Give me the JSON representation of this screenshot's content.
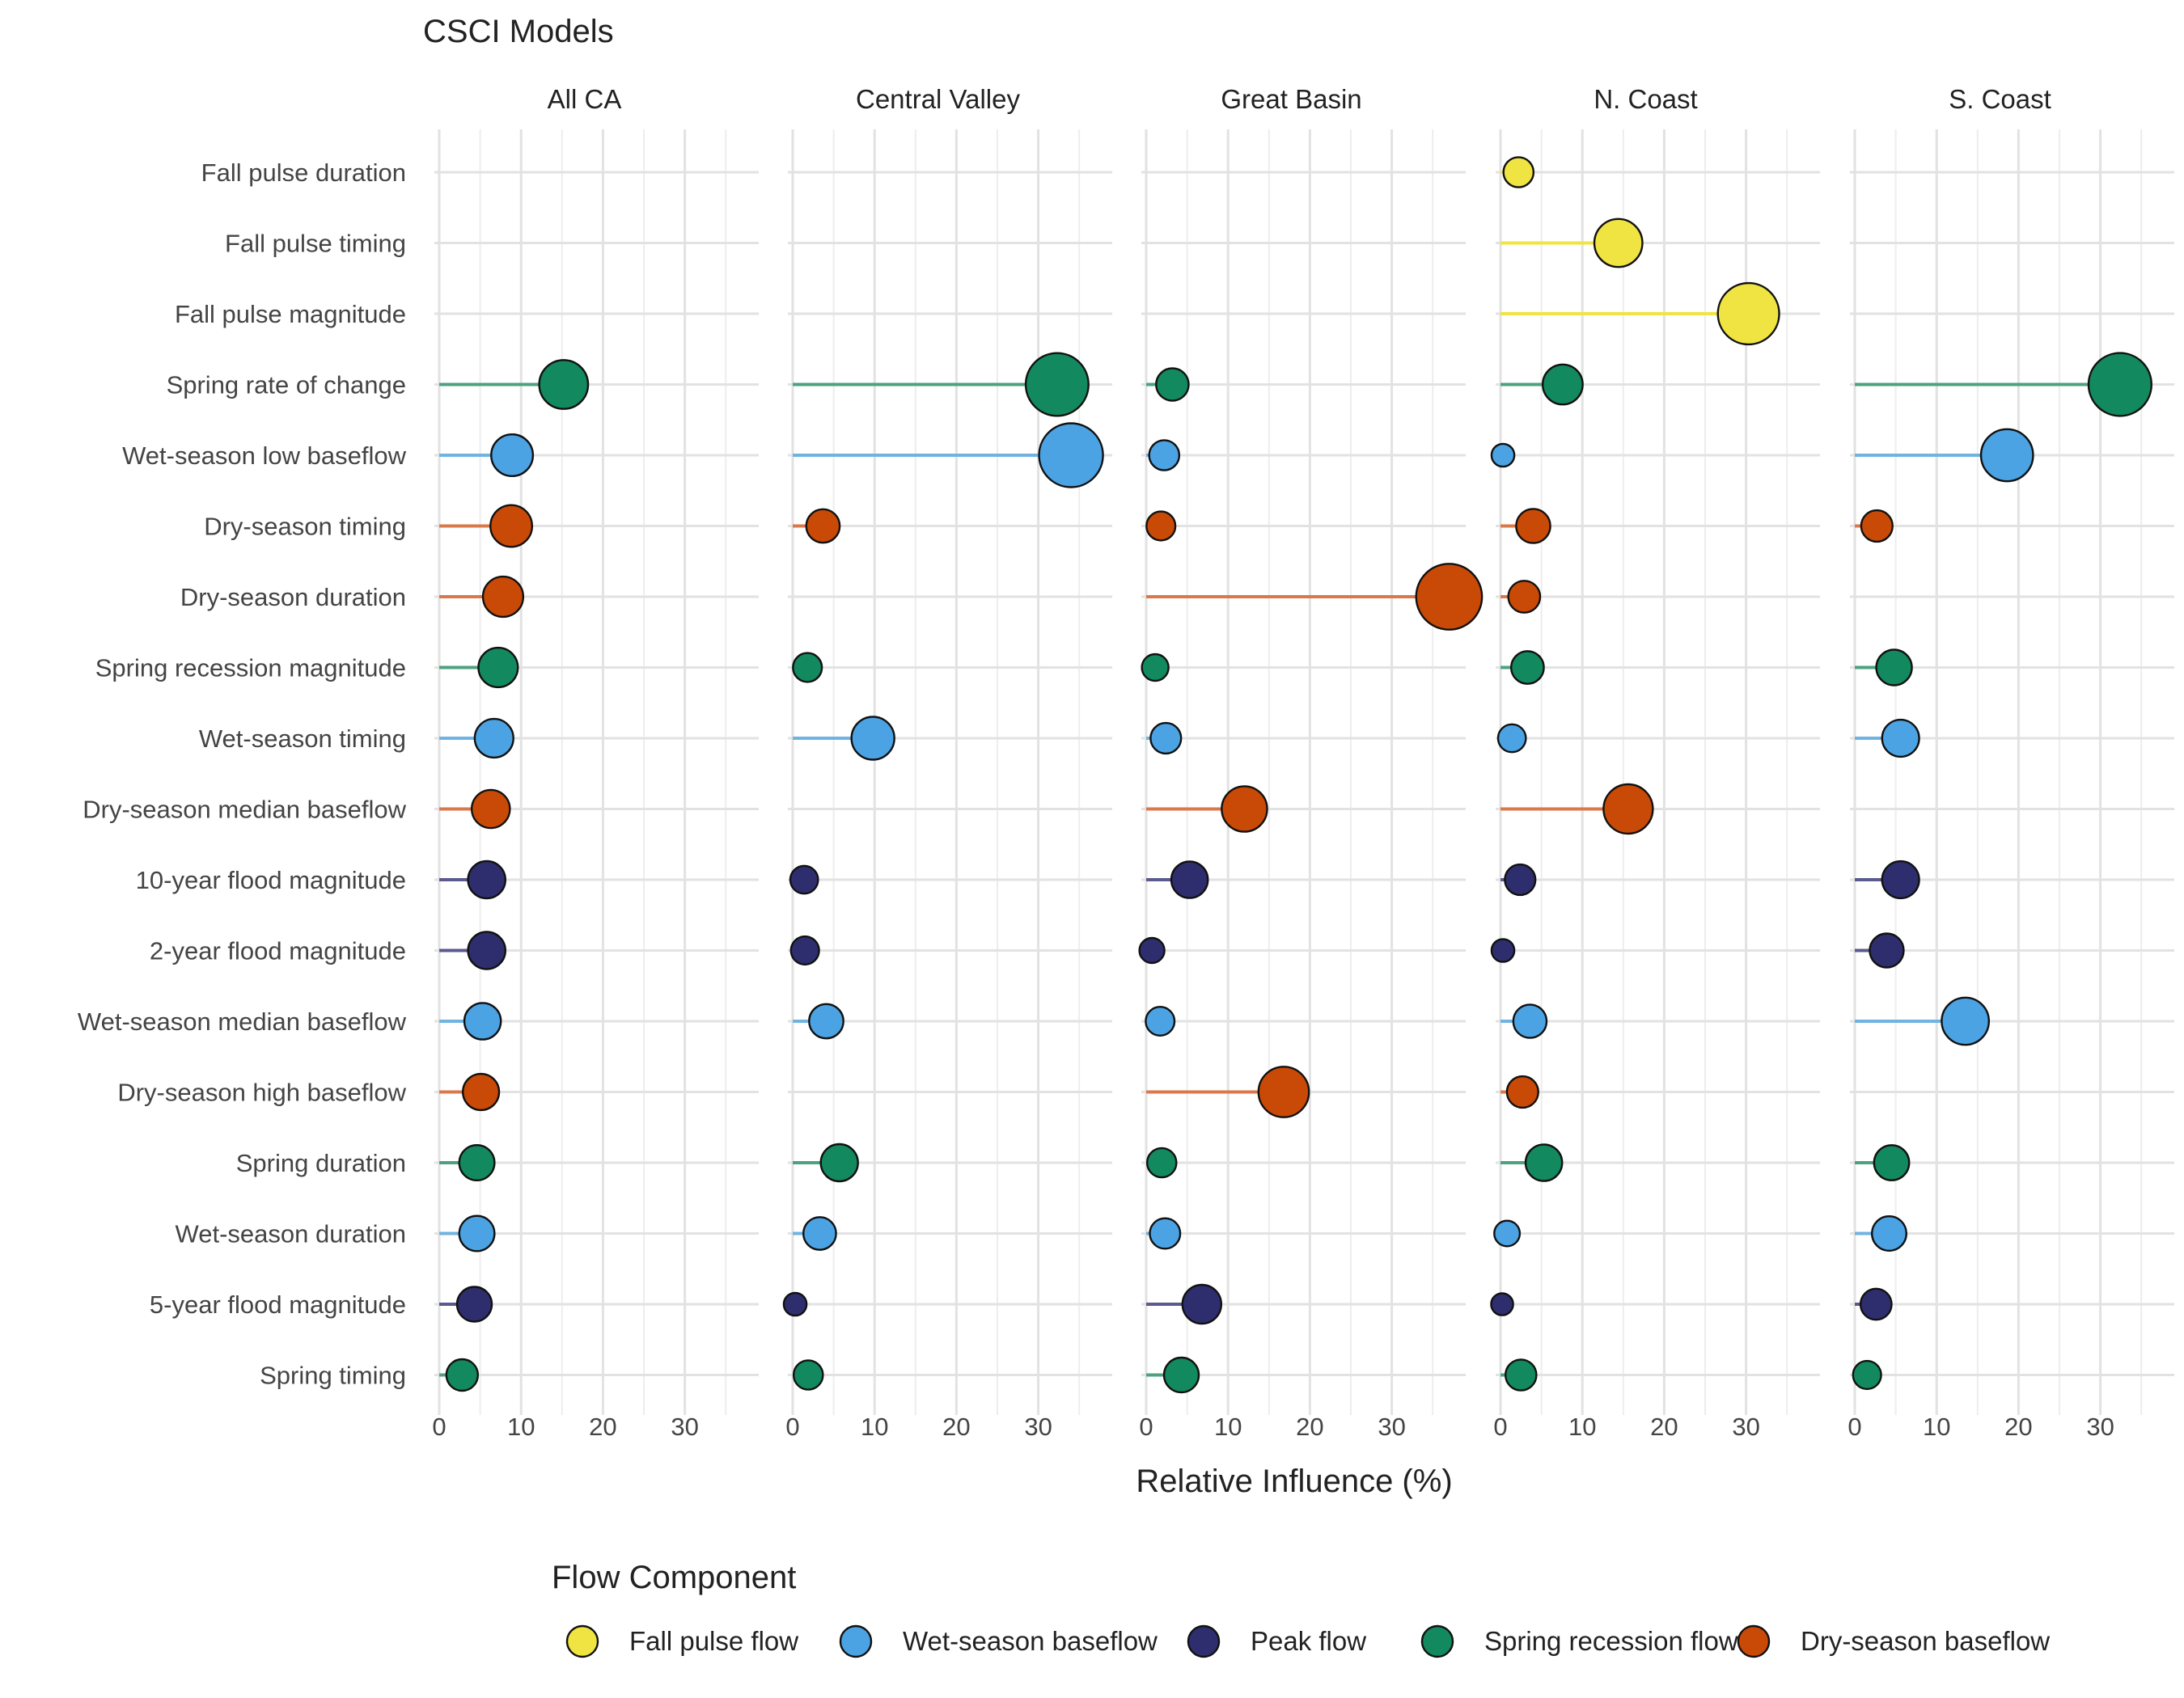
{
  "chart_data": {
    "type": "lollipop",
    "title": "CSCI Models",
    "xlabel": "Relative Influence (%)",
    "xlim": [
      0,
      37
    ],
    "xticks": [
      0,
      10,
      20,
      30
    ],
    "grid": true,
    "legend_title": "Flow Component",
    "legend_position": "bottom",
    "components": [
      {
        "name": "Fall pulse flow",
        "color": "#F0E442",
        "line_color": "#F0E442"
      },
      {
        "name": "Wet-season baseflow",
        "color": "#4BA3E3",
        "line_color": "#6FB3E0"
      },
      {
        "name": "Peak flow",
        "color": "#2E2E6E",
        "line_color": "#5A5A8E"
      },
      {
        "name": "Spring recession flow",
        "color": "#12895E",
        "line_color": "#4EA17F"
      },
      {
        "name": "Dry-season baseflow",
        "color": "#C94A06",
        "line_color": "#D9784A"
      }
    ],
    "metrics": [
      {
        "label": "Fall pulse duration",
        "component": 0
      },
      {
        "label": "Fall pulse timing",
        "component": 0
      },
      {
        "label": "Fall pulse magnitude",
        "component": 0
      },
      {
        "label": "Spring rate of change",
        "component": 3
      },
      {
        "label": "Wet-season low baseflow",
        "component": 1
      },
      {
        "label": "Dry-season timing",
        "component": 4
      },
      {
        "label": "Dry-season duration",
        "component": 4
      },
      {
        "label": "Spring recession magnitude",
        "component": 3
      },
      {
        "label": "Wet-season timing",
        "component": 1
      },
      {
        "label": "Dry-season median baseflow",
        "component": 4
      },
      {
        "label": "10-year flood magnitude",
        "component": 2
      },
      {
        "label": "2-year flood magnitude",
        "component": 2
      },
      {
        "label": "Wet-season median baseflow",
        "component": 1
      },
      {
        "label": "Dry-season high baseflow",
        "component": 4
      },
      {
        "label": "Spring duration",
        "component": 3
      },
      {
        "label": "Wet-season duration",
        "component": 1
      },
      {
        "label": "5-year flood magnitude",
        "component": 2
      },
      {
        "label": "Spring timing",
        "component": 3
      }
    ],
    "panels": [
      {
        "name": "All CA",
        "values": [
          null,
          null,
          null,
          15.2,
          8.9,
          8.8,
          7.8,
          7.2,
          6.7,
          6.3,
          5.8,
          5.8,
          5.3,
          5.1,
          4.6,
          4.6,
          4.3,
          2.8
        ]
      },
      {
        "name": "Central Valley",
        "values": [
          null,
          null,
          null,
          32.3,
          34.0,
          3.7,
          null,
          1.8,
          9.8,
          null,
          1.4,
          1.5,
          4.1,
          null,
          5.7,
          3.3,
          0.3,
          1.9
        ]
      },
      {
        "name": "Great Basin",
        "values": [
          null,
          null,
          null,
          3.2,
          2.2,
          1.8,
          37.0,
          1.1,
          2.4,
          12.0,
          5.3,
          0.7,
          1.7,
          16.8,
          1.9,
          2.3,
          6.8,
          4.3
        ]
      },
      {
        "name": "N. Coast",
        "values": [
          2.2,
          14.4,
          30.3,
          7.6,
          0.3,
          4.0,
          2.9,
          3.3,
          1.4,
          15.6,
          2.4,
          0.3,
          3.6,
          2.7,
          5.3,
          0.8,
          0.2,
          2.5
        ]
      },
      {
        "name": "S. Coast",
        "values": [
          null,
          null,
          null,
          32.4,
          18.6,
          2.7,
          null,
          4.8,
          5.6,
          null,
          5.6,
          3.9,
          13.5,
          null,
          4.5,
          4.2,
          2.6,
          1.5
        ]
      }
    ]
  }
}
